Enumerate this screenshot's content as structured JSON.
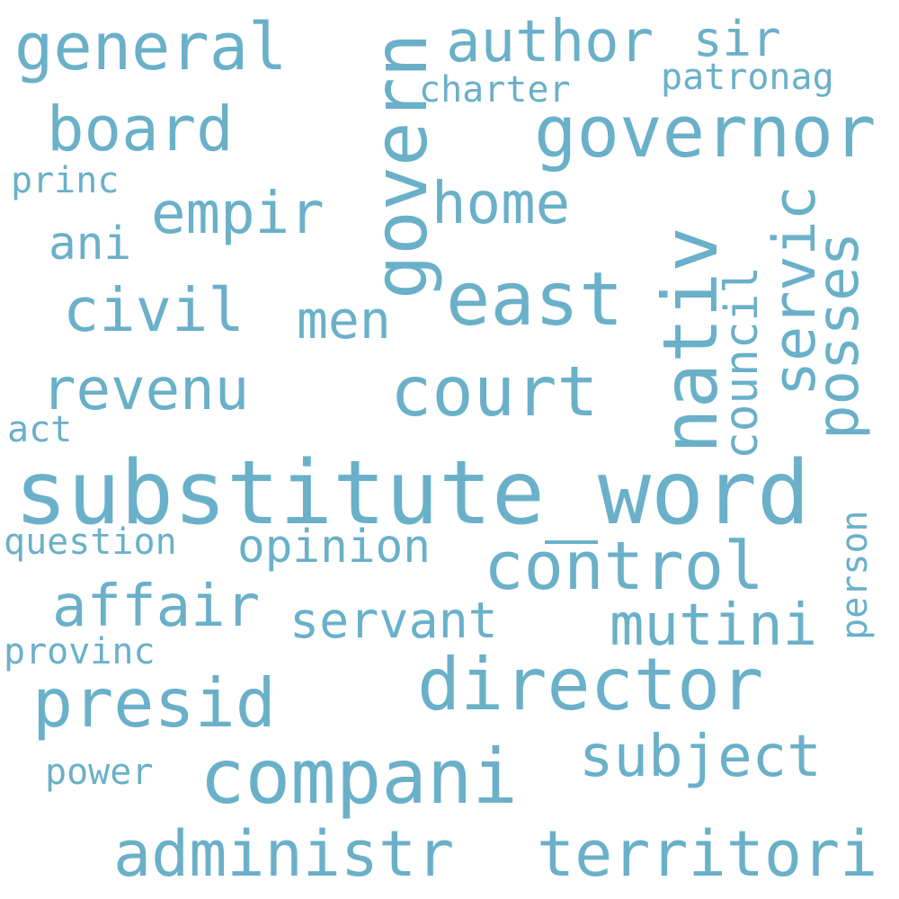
{
  "word_color": "#6ab0c9",
  "background": "#ffffff",
  "words": {
    "substitute_word": "substitute_word",
    "compani": "compani",
    "director": "director",
    "nativ": "nativ",
    "govern": "govern",
    "governor": "governor",
    "east": "east",
    "court": "court",
    "control": "control",
    "presid": "presid",
    "administr": "administr",
    "territori": "territori",
    "general": "general",
    "author": "author",
    "board": "board",
    "servic": "servic",
    "posses": "posses",
    "empir": "empir",
    "home": "home",
    "civil": "civil",
    "revenu": "revenu",
    "affair": "affair",
    "mutini": "mutini",
    "subject": "subject",
    "council": "council",
    "servant": "servant",
    "opinion": "opinion",
    "men": "men",
    "sir": "sir",
    "ani": "ani",
    "patronag": "patronag",
    "charter": "charter",
    "princ": "princ",
    "act": "act",
    "question": "question",
    "provinc": "provinc",
    "power": "power",
    "person": "person"
  }
}
